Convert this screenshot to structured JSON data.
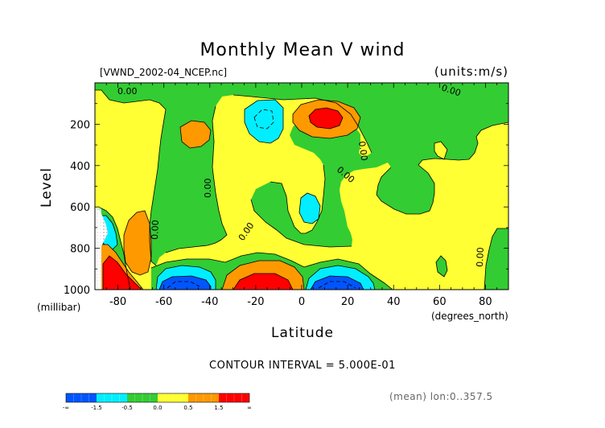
{
  "chart_data": {
    "type": "heatmap",
    "title": "Monthly Mean V wind",
    "file_label": "[VWND_2002-04_NCEP.nc]",
    "units_label": "(units:m/s)",
    "xlabel": "Latitude",
    "xunit": "(degrees_north)",
    "ylabel": "Level",
    "yunit": "(millibar)",
    "x_ticks": [
      "-80",
      "-60",
      "-40",
      "-20",
      "0",
      "20",
      "40",
      "60",
      "80"
    ],
    "y_ticks": [
      "200",
      "400",
      "600",
      "800",
      "1000"
    ],
    "xlim": [
      -90,
      90
    ],
    "ylim": [
      1000,
      0
    ],
    "contour_interval_text": "CONTOUR INTERVAL = 5.000E-01",
    "footer_right": "(mean) lon:0..357.5",
    "contour_labels": [
      "0.00",
      "0.00",
      "0.00",
      "0.00",
      "0.00",
      "0.00",
      "0.00",
      "0.00"
    ],
    "colorbar": {
      "labels": [
        "-∞",
        "-1.5",
        "-0.5",
        "0.0",
        "0.5",
        "1.5",
        "∞"
      ],
      "colors": [
        "#0055ff",
        "#00eeff",
        "#33cc33",
        "#ffff33",
        "#ff9900",
        "#ff0000"
      ]
    },
    "regions": [
      {
        "label": "background",
        "level": "0.0 to 0.5",
        "color": "#ffff33"
      },
      {
        "label": "green region",
        "level": "-0.5 to 0.0",
        "color": "#33cc33"
      },
      {
        "label": "cyan region",
        "level": "-1.5 to -0.5",
        "color": "#00eeff"
      },
      {
        "label": "blue region",
        "level": "< -1.5",
        "color": "#0055ff"
      },
      {
        "label": "orange region",
        "level": "0.5 to 1.5",
        "color": "#ff9900"
      },
      {
        "label": "red region",
        "level": "> 1.5",
        "color": "#ff0000"
      }
    ]
  }
}
